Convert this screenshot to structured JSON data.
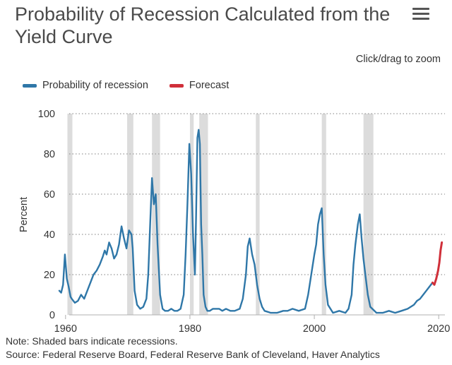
{
  "header": {
    "title": "Probability of Recession Calculated from the Yield Curve",
    "zoom_hint": "Click/drag to zoom"
  },
  "colors": {
    "probability": "#2f77a8",
    "forecast": "#d0303a",
    "recession": "#dcdcdc",
    "grid": "#999999"
  },
  "chart_data": {
    "type": "line",
    "title": "Probability of Recession Calculated from the Yield Curve",
    "xlabel": "",
    "ylabel": "Percent",
    "xlim": [
      1959,
      2021
    ],
    "ylim": [
      0,
      100
    ],
    "x_ticks": [
      1960,
      1980,
      2000,
      2020
    ],
    "y_ticks": [
      0,
      20,
      40,
      60,
      80,
      100
    ],
    "legend_position": "top-left",
    "grid": "horizontal dotted",
    "recessions": [
      [
        1960.3,
        1961.1
      ],
      [
        1969.9,
        1970.9
      ],
      [
        1973.9,
        1975.2
      ],
      [
        1980.0,
        1980.6
      ],
      [
        1981.5,
        1982.9
      ],
      [
        1990.6,
        1991.2
      ],
      [
        2001.2,
        2001.9
      ],
      [
        2007.9,
        2009.5
      ]
    ],
    "series": [
      {
        "name": "Probability of recession",
        "x": [
          1959.0,
          1959.3,
          1959.6,
          1959.9,
          1960.2,
          1960.5,
          1960.8,
          1961.0,
          1961.5,
          1962.0,
          1962.5,
          1963.0,
          1963.5,
          1964.0,
          1964.5,
          1965.0,
          1965.5,
          1966.0,
          1966.3,
          1966.6,
          1967.0,
          1967.4,
          1967.8,
          1968.2,
          1968.6,
          1969.0,
          1969.4,
          1969.8,
          1970.2,
          1970.6,
          1970.8,
          1971.1,
          1971.5,
          1972.0,
          1972.5,
          1973.0,
          1973.3,
          1973.6,
          1973.9,
          1974.2,
          1974.5,
          1974.8,
          1975.2,
          1975.6,
          1976.0,
          1976.5,
          1977.0,
          1977.5,
          1978.0,
          1978.5,
          1979.0,
          1979.3,
          1979.6,
          1979.9,
          1980.2,
          1980.5,
          1980.8,
          1981.0,
          1981.2,
          1981.4,
          1981.6,
          1981.8,
          1982.0,
          1982.2,
          1982.5,
          1982.8,
          1983.2,
          1983.7,
          1984.2,
          1984.7,
          1985.2,
          1985.8,
          1986.5,
          1987.2,
          1988.0,
          1988.5,
          1989.0,
          1989.3,
          1989.6,
          1990.0,
          1990.4,
          1990.8,
          1991.2,
          1991.6,
          1992.0,
          1993.0,
          1994.0,
          1995.0,
          1995.7,
          1996.5,
          1997.5,
          1998.5,
          1999.0,
          1999.5,
          2000.0,
          2000.3,
          2000.6,
          2000.9,
          2001.2,
          2001.5,
          2001.8,
          2002.2,
          2003.0,
          2004.0,
          2005.0,
          2005.5,
          2006.0,
          2006.3,
          2006.6,
          2007.0,
          2007.3,
          2007.6,
          2007.9,
          2008.2,
          2008.6,
          2009.0,
          2010.0,
          2011.0,
          2012.0,
          2013.0,
          2014.0,
          2015.0,
          2016.0,
          2016.5,
          2017.0,
          2017.5,
          2018.0,
          2018.5,
          2019.0
        ],
        "values": [
          12,
          11,
          15,
          30,
          18,
          14,
          9,
          8,
          6,
          7,
          10,
          8,
          12,
          16,
          20,
          22,
          25,
          29,
          32,
          30,
          36,
          33,
          28,
          30,
          35,
          44,
          38,
          33,
          42,
          40,
          33,
          12,
          5,
          3,
          4,
          8,
          20,
          45,
          68,
          55,
          60,
          35,
          10,
          3,
          2,
          2,
          3,
          2,
          2,
          3,
          10,
          30,
          55,
          85,
          70,
          40,
          20,
          50,
          88,
          92,
          85,
          45,
          30,
          10,
          4,
          2,
          2,
          3,
          3,
          3,
          2,
          3,
          2,
          2,
          3,
          8,
          20,
          34,
          38,
          30,
          25,
          15,
          8,
          4,
          2,
          1,
          1,
          2,
          2,
          3,
          2,
          3,
          10,
          20,
          30,
          35,
          45,
          50,
          53,
          30,
          15,
          5,
          1,
          2,
          1,
          3,
          10,
          25,
          35,
          45,
          50,
          38,
          28,
          20,
          10,
          4,
          1,
          1,
          2,
          1,
          2,
          3,
          5,
          7,
          8,
          10,
          12,
          14,
          16
        ]
      },
      {
        "name": "Forecast",
        "x": [
          2019.0,
          2019.3,
          2019.6,
          2019.9,
          2020.1,
          2020.3,
          2020.5
        ],
        "values": [
          16,
          15,
          18,
          22,
          26,
          32,
          36
        ]
      }
    ]
  },
  "footer": {
    "note": "Note: Shaded bars indicate recessions.",
    "source": "Source: Federal Reserve Board, Federal Reserve Bank of Cleveland, Haver Analytics"
  }
}
